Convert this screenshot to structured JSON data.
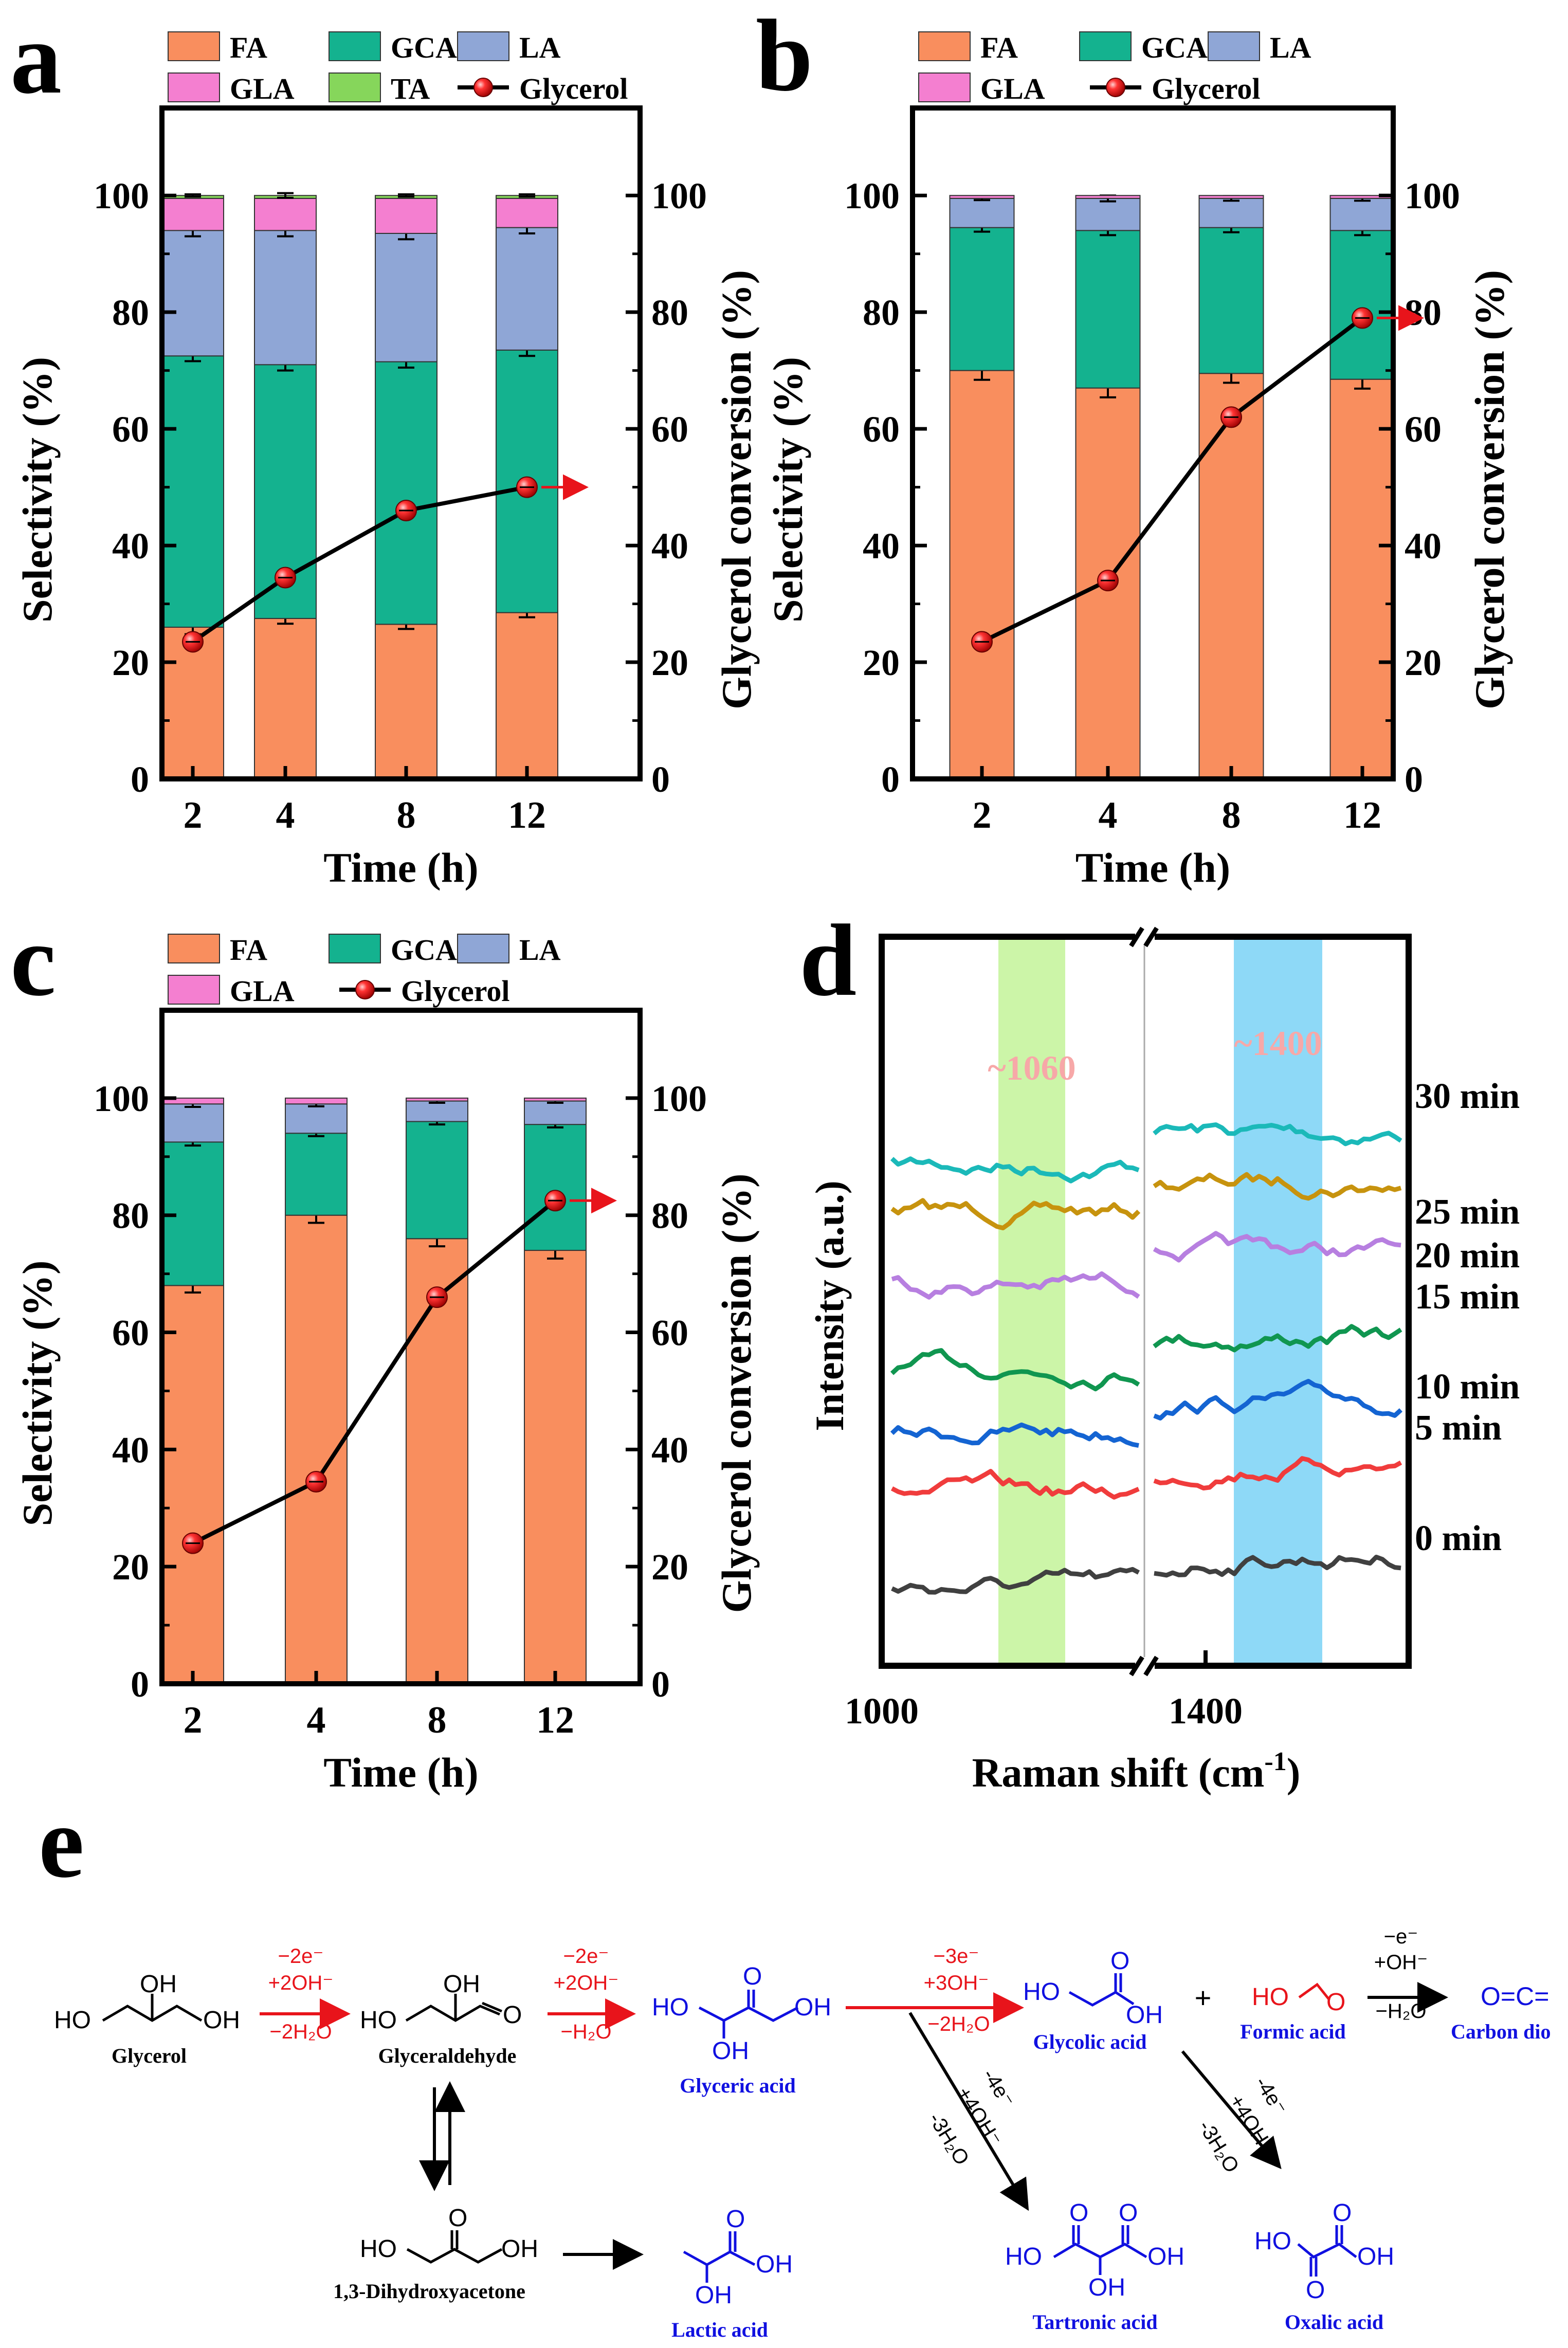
{
  "colors": {
    "FA": "#F98E5E",
    "GCA": "#14B28F",
    "LA": "#8FA6D6",
    "GLA": "#F47FD0",
    "TA": "#86D65B",
    "glycerol_marker": "#E01010",
    "raman_band1": "#CCF5A8",
    "raman_band2": "#8ED9F7",
    "red": "#E8141B",
    "blue": "#1010E0"
  },
  "chart_data": [
    {
      "panel": "a",
      "type": "bar",
      "stacked": true,
      "categories": [
        "2",
        "4",
        "8",
        "12"
      ],
      "xlabel": "Time (h)",
      "ylabel": "Selectivity (%)",
      "y2label": "Glycerol conversion (%)",
      "ylim": [
        0,
        115
      ],
      "yticks": [
        "0",
        "20",
        "40",
        "60",
        "80",
        "100"
      ],
      "y2ticks": [
        "0",
        "20",
        "40",
        "60",
        "80",
        "100"
      ],
      "series": [
        {
          "name": "FA",
          "color_key": "FA",
          "values": [
            26,
            27.5,
            26.5,
            28.5
          ],
          "errors": [
            1.2,
            0.9,
            0.8,
            0.8
          ]
        },
        {
          "name": "GCA",
          "color_key": "GCA",
          "values": [
            46.5,
            43.5,
            45,
            45
          ],
          "errors": [
            0.9,
            1.0,
            1.0,
            1.0
          ]
        },
        {
          "name": "LA",
          "color_key": "LA",
          "values": [
            21.5,
            23,
            22,
            21
          ],
          "errors": [
            1.0,
            1.0,
            1.0,
            1.0
          ]
        },
        {
          "name": "GLA",
          "color_key": "GLA",
          "values": [
            5.5,
            5.5,
            6,
            5
          ],
          "errors": [
            0,
            0,
            0,
            0
          ]
        },
        {
          "name": "TA",
          "color_key": "TA",
          "values": [
            0.5,
            0.5,
            0.5,
            0.5
          ],
          "errors": [
            0.2,
            0.4,
            0.2,
            0.2
          ]
        }
      ],
      "line": {
        "name": "Glycerol",
        "values": [
          23.5,
          34.5,
          46,
          50
        ],
        "arrow_at": 3
      },
      "legend": [
        [
          "FA",
          "GCA",
          "LA"
        ],
        [
          "GLA",
          "TA",
          "Glycerol"
        ]
      ]
    },
    {
      "panel": "b",
      "type": "bar",
      "stacked": true,
      "categories": [
        "2",
        "4",
        "8",
        "12"
      ],
      "xlabel": "Time (h)",
      "ylabel": "Selectivity (%)",
      "y2label": "Glycerol conversion (%)",
      "ylim": [
        0,
        115
      ],
      "yticks": [
        "0",
        "20",
        "40",
        "60",
        "80",
        "100"
      ],
      "y2ticks": [
        "0",
        "20",
        "40",
        "60",
        "80",
        "100"
      ],
      "series": [
        {
          "name": "FA",
          "color_key": "FA",
          "values": [
            70,
            67,
            69.5,
            68.5
          ],
          "errors": [
            1.6,
            1.6,
            1.6,
            1.6
          ]
        },
        {
          "name": "GCA",
          "color_key": "GCA",
          "values": [
            24.5,
            27,
            25,
            25.5
          ],
          "errors": [
            0.7,
            0.8,
            0.8,
            0.8
          ]
        },
        {
          "name": "LA",
          "color_key": "LA",
          "values": [
            5,
            5.5,
            5,
            5.5
          ],
          "errors": [
            0.3,
            0.5,
            0.4,
            0.4
          ]
        },
        {
          "name": "GLA",
          "color_key": "GLA",
          "values": [
            0.5,
            0.5,
            0.5,
            0.5
          ],
          "errors": [
            0,
            0,
            0,
            0
          ]
        }
      ],
      "line": {
        "name": "Glycerol",
        "values": [
          23.5,
          34,
          62,
          79
        ],
        "arrow_at": 3
      },
      "legend": [
        [
          "FA",
          "GCA",
          "LA"
        ],
        [
          "GLA",
          "Glycerol"
        ]
      ]
    },
    {
      "panel": "c",
      "type": "bar",
      "stacked": true,
      "categories": [
        "2",
        "4",
        "8",
        "12"
      ],
      "xlabel": "Time (h)",
      "ylabel": "Selectivity (%)",
      "y2label": "Glycerol conversion (%)",
      "ylim": [
        0,
        115
      ],
      "yticks": [
        "0",
        "20",
        "40",
        "60",
        "80",
        "100"
      ],
      "y2ticks": [
        "0",
        "20",
        "40",
        "60",
        "80",
        "100"
      ],
      "series": [
        {
          "name": "FA",
          "color_key": "FA",
          "values": [
            68,
            80,
            76,
            74
          ],
          "errors": [
            1.2,
            1.3,
            1.3,
            1.4
          ]
        },
        {
          "name": "GCA",
          "color_key": "GCA",
          "values": [
            24.5,
            14,
            20,
            21.5
          ],
          "errors": [
            0.6,
            0.5,
            0.5,
            0.5
          ]
        },
        {
          "name": "LA",
          "color_key": "LA",
          "values": [
            6.5,
            5,
            3.5,
            4
          ],
          "errors": [
            0.5,
            0.4,
            0.3,
            0.3
          ]
        },
        {
          "name": "GLA",
          "color_key": "GLA",
          "values": [
            1,
            1,
            0.5,
            0.5
          ],
          "errors": [
            0,
            0,
            0,
            0
          ]
        }
      ],
      "line": {
        "name": "Glycerol",
        "values": [
          24,
          34.5,
          66,
          82.5
        ],
        "arrow_at": 3
      },
      "legend": [
        [
          "FA",
          "GCA",
          "LA"
        ],
        [
          "GLA",
          "Glycerol"
        ]
      ]
    },
    {
      "panel": "d",
      "type": "line",
      "xlabel": "Raman shift (cm",
      "xlabel_sup": "-1",
      "xlabel_end": ")",
      "ylabel": "Intensity (a.u.)",
      "xticks": [
        "1000",
        "1400"
      ],
      "bands": [
        {
          "label": "~1060",
          "center": 1060
        },
        {
          "label": "~1400",
          "center": 1400
        }
      ],
      "series": [
        {
          "name": "30 min",
          "color": "#1BB9B9",
          "baseline": 8.0
        },
        {
          "name": "25 min",
          "color": "#C7930E",
          "baseline": 7.0
        },
        {
          "name": "20 min",
          "color": "#B77FE0",
          "baseline": 6.0
        },
        {
          "name": "15 min",
          "color": "#109650",
          "baseline": 5.0
        },
        {
          "name": "10 min",
          "color": "#1464D2",
          "baseline": 4.0
        },
        {
          "name": "5 min",
          "color": "#F03C3C",
          "baseline": 3.0
        },
        {
          "name": "0 min",
          "color": "#404040",
          "baseline": 2.0
        }
      ]
    }
  ],
  "panel_letters": [
    "a",
    "b",
    "c",
    "d",
    "e"
  ],
  "scheme": {
    "glycerol": "Glycerol",
    "glyceraldehyde": "Glyceraldehyde",
    "dha": "1,3-Dihydroxyacetone",
    "glyceric_acid": "Glyceric acid",
    "lactic_acid": "Lactic acid",
    "glycolic_acid": "Glycolic acid",
    "formic_acid": "Formic acid",
    "carbon_dio": "Carbon dio",
    "tartronic_acid": "Tartronic acid",
    "oxalic_acid": "Oxalic acid",
    "plus": "+",
    "step1": [
      "−2e⁻",
      "+2OH⁻",
      "−2H₂O"
    ],
    "step2": [
      "−2e⁻",
      "+2OH⁻",
      "−H₂O"
    ],
    "step3": [
      "−3e⁻",
      "+3OH⁻",
      "−2H₂O"
    ],
    "step4": [
      "−e⁻",
      "+OH⁻",
      "−H₂O"
    ],
    "diag1": [
      "-4e⁻",
      "+4OH⁻",
      "-3H₂O"
    ],
    "diag2": [
      "-4e⁻",
      "+4OH⁻",
      "-3H₂O"
    ],
    "atoms": {
      "OH": "OH",
      "HO": "HO",
      "O": "O"
    },
    "co2": "O=C="
  }
}
